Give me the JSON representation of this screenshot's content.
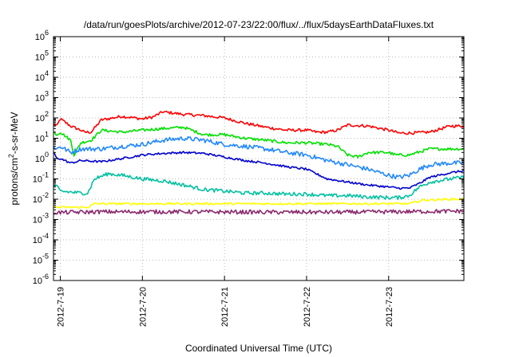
{
  "chart_data": {
    "type": "line",
    "title": "/data/run/goesPlots/archive/2012-07-23/22:00/flux/../flux/5daysEarthDataFluxes.txt",
    "xlabel": "Coordinated Universal Time (UTC)",
    "ylabel": {
      "base": "protons/cm",
      "sup": "2",
      "rest": "-s-sr-MeV"
    },
    "yscale": "log",
    "ylim_exp": [
      -6,
      6
    ],
    "y_ticks": [
      {
        "exp": "-6"
      },
      {
        "exp": "-5"
      },
      {
        "exp": "-4"
      },
      {
        "exp": "-3"
      },
      {
        "exp": "-2"
      },
      {
        "exp": "-1"
      },
      {
        "exp": "0"
      },
      {
        "exp": "1"
      },
      {
        "exp": "2"
      },
      {
        "exp": "3"
      },
      {
        "exp": "4"
      },
      {
        "exp": "5"
      },
      {
        "exp": "6"
      }
    ],
    "x_range": [
      "2012-07-18T22:00",
      "2012-07-23T22:00"
    ],
    "x_ticks": [
      {
        "label": "2012-7-19",
        "date": "2012-07-19T00:00"
      },
      {
        "label": "2012-7-20",
        "date": "2012-07-20T00:00"
      },
      {
        "label": "2012-7-21",
        "date": "2012-07-21T00:00"
      },
      {
        "label": "2012-7-22",
        "date": "2012-07-22T00:00"
      },
      {
        "label": "2012-7-23",
        "date": "2012-07-23T00:00"
      }
    ],
    "grid": true,
    "series": [
      {
        "color": "#ff0000",
        "noise": 0.07,
        "x": [
          "2012-07-18T22:00",
          "2012-07-18T23:00",
          "2012-07-19T00:00",
          "2012-07-19T03:00",
          "2012-07-19T06:00",
          "2012-07-19T07:00",
          "2012-07-19T09:00",
          "2012-07-19T12:00",
          "2012-07-19T18:00",
          "2012-07-20T00:00",
          "2012-07-20T03:00",
          "2012-07-20T06:00",
          "2012-07-20T12:00",
          "2012-07-20T18:00",
          "2012-07-21T00:00",
          "2012-07-21T06:00",
          "2012-07-21T12:00",
          "2012-07-21T18:00",
          "2012-07-22T00:00",
          "2012-07-22T03:00",
          "2012-07-22T06:00",
          "2012-07-22T09:00",
          "2012-07-22T12:00",
          "2012-07-22T18:00",
          "2012-07-23T00:00",
          "2012-07-23T03:00",
          "2012-07-23T06:00",
          "2012-07-23T12:00",
          "2012-07-23T18:00",
          "2012-07-23T22:00"
        ],
        "y": [
          50,
          40,
          90,
          40,
          25,
          20,
          20,
          80,
          120,
          90,
          110,
          200,
          150,
          130,
          100,
          55,
          35,
          25,
          25,
          20,
          20,
          25,
          45,
          40,
          25,
          18,
          18,
          20,
          40,
          40
        ]
      },
      {
        "color": "#00e000",
        "noise": 0.07,
        "x": [
          "2012-07-18T22:00",
          "2012-07-18T23:00",
          "2012-07-19T00:00",
          "2012-07-19T03:00",
          "2012-07-19T04:00",
          "2012-07-19T06:00",
          "2012-07-19T09:00",
          "2012-07-19T12:00",
          "2012-07-19T18:00",
          "2012-07-20T00:00",
          "2012-07-20T06:00",
          "2012-07-20T12:00",
          "2012-07-20T18:00",
          "2012-07-21T00:00",
          "2012-07-21T06:00",
          "2012-07-21T12:00",
          "2012-07-21T18:00",
          "2012-07-22T00:00",
          "2012-07-22T06:00",
          "2012-07-22T09:00",
          "2012-07-22T12:00",
          "2012-07-22T15:00",
          "2012-07-22T18:00",
          "2012-07-23T00:00",
          "2012-07-23T02:00",
          "2012-07-23T06:00",
          "2012-07-23T12:00",
          "2012-07-23T18:00",
          "2012-07-23T22:00"
        ],
        "y": [
          20,
          15,
          20,
          8,
          1.5,
          6,
          8,
          25,
          20,
          25,
          30,
          35,
          15,
          15,
          10,
          8,
          6,
          6,
          5,
          4,
          1.5,
          1.2,
          2,
          2,
          1.5,
          1.5,
          3,
          3,
          3
        ]
      },
      {
        "color": "#2288ff",
        "noise": 0.11,
        "x": [
          "2012-07-18T22:00",
          "2012-07-18T23:00",
          "2012-07-19T00:00",
          "2012-07-19T03:00",
          "2012-07-19T06:00",
          "2012-07-19T12:00",
          "2012-07-19T18:00",
          "2012-07-20T00:00",
          "2012-07-20T06:00",
          "2012-07-20T12:00",
          "2012-07-20T18:00",
          "2012-07-21T00:00",
          "2012-07-21T06:00",
          "2012-07-21T12:00",
          "2012-07-21T18:00",
          "2012-07-22T00:00",
          "2012-07-22T06:00",
          "2012-07-22T12:00",
          "2012-07-22T18:00",
          "2012-07-23T00:00",
          "2012-07-23T03:00",
          "2012-07-23T06:00",
          "2012-07-23T09:00",
          "2012-07-23T12:00",
          "2012-07-23T18:00",
          "2012-07-23T22:00"
        ],
        "y": [
          4,
          3,
          4,
          2,
          3,
          3,
          4,
          5,
          8,
          10,
          8,
          5,
          4,
          3,
          2,
          1.5,
          0.8,
          0.5,
          0.3,
          0.15,
          0.12,
          0.15,
          0.3,
          0.5,
          0.6,
          0.6
        ]
      },
      {
        "color": "#0000cc",
        "noise": 0.05,
        "x": [
          "2012-07-18T22:00",
          "2012-07-18T23:00",
          "2012-07-19T00:00",
          "2012-07-19T03:00",
          "2012-07-19T06:00",
          "2012-07-19T12:00",
          "2012-07-19T18:00",
          "2012-07-20T00:00",
          "2012-07-20T06:00",
          "2012-07-20T12:00",
          "2012-07-20T18:00",
          "2012-07-21T00:00",
          "2012-07-21T06:00",
          "2012-07-21T12:00",
          "2012-07-21T18:00",
          "2012-07-22T00:00",
          "2012-07-22T06:00",
          "2012-07-22T12:00",
          "2012-07-22T18:00",
          "2012-07-23T00:00",
          "2012-07-23T03:00",
          "2012-07-23T06:00",
          "2012-07-23T09:00",
          "2012-07-23T12:00",
          "2012-07-23T18:00",
          "2012-07-23T22:00"
        ],
        "y": [
          2,
          1,
          1,
          0.6,
          0.8,
          0.7,
          1,
          1.5,
          1.8,
          2,
          1.8,
          1.2,
          0.8,
          0.6,
          0.4,
          0.3,
          0.1,
          0.07,
          0.05,
          0.04,
          0.035,
          0.035,
          0.06,
          0.12,
          0.2,
          0.25
        ]
      },
      {
        "color": "#00c0a0",
        "noise": 0.09,
        "x": [
          "2012-07-18T22:00",
          "2012-07-18T23:00",
          "2012-07-19T00:00",
          "2012-07-19T06:00",
          "2012-07-19T08:00",
          "2012-07-19T10:00",
          "2012-07-19T14:00",
          "2012-07-19T18:00",
          "2012-07-20T00:00",
          "2012-07-20T06:00",
          "2012-07-20T12:00",
          "2012-07-20T18:00",
          "2012-07-21T00:00",
          "2012-07-21T06:00",
          "2012-07-21T12:00",
          "2012-07-21T18:00",
          "2012-07-22T00:00",
          "2012-07-22T06:00",
          "2012-07-22T12:00",
          "2012-07-22T18:00",
          "2012-07-23T00:00",
          "2012-07-23T03:00",
          "2012-07-23T06:00",
          "2012-07-23T09:00",
          "2012-07-23T12:00",
          "2012-07-23T18:00",
          "2012-07-23T22:00"
        ],
        "y": [
          0.05,
          0.04,
          0.025,
          0.02,
          0.02,
          0.1,
          0.18,
          0.15,
          0.1,
          0.08,
          0.05,
          0.03,
          0.025,
          0.02,
          0.02,
          0.018,
          0.018,
          0.015,
          0.015,
          0.013,
          0.012,
          0.012,
          0.015,
          0.04,
          0.07,
          0.1,
          0.12
        ]
      },
      {
        "color": "#ffff00",
        "noise": 0.05,
        "x": [
          "2012-07-18T22:00",
          "2012-07-19T00:00",
          "2012-07-19T08:00",
          "2012-07-19T10:00",
          "2012-07-19T14:00",
          "2012-07-20T00:00",
          "2012-07-20T12:00",
          "2012-07-21T00:00",
          "2012-07-21T12:00",
          "2012-07-22T00:00",
          "2012-07-22T12:00",
          "2012-07-23T00:00",
          "2012-07-23T06:00",
          "2012-07-23T10:00",
          "2012-07-23T18:00",
          "2012-07-23T22:00"
        ],
        "y": [
          0.004,
          0.004,
          0.004,
          0.006,
          0.006,
          0.006,
          0.006,
          0.006,
          0.006,
          0.006,
          0.006,
          0.006,
          0.006,
          0.009,
          0.01,
          0.01
        ]
      },
      {
        "color": "#8b2a6e",
        "noise": 0.1,
        "x": [
          "2012-07-18T22:00",
          "2012-07-19T12:00",
          "2012-07-20T12:00",
          "2012-07-21T12:00",
          "2012-07-22T12:00",
          "2012-07-23T12:00",
          "2012-07-23T22:00"
        ],
        "y": [
          0.0022,
          0.0024,
          0.0024,
          0.0023,
          0.0023,
          0.0025,
          0.0026
        ]
      }
    ]
  }
}
